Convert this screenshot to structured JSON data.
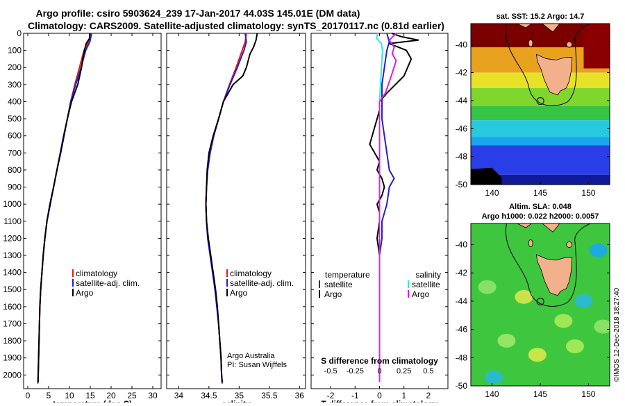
{
  "title": {
    "line1": "Argo profile: csiro 5903624_239 17-Jan-2017 44.03S 145.01E (DM data)",
    "line2": "Climatology: CARS2009. Satellite-adjusted climatology: synTS_20170117.nc (0.81d earlier)"
  },
  "depth_ticks": [
    "0",
    "100",
    "200",
    "300",
    "400",
    "500",
    "600",
    "700",
    "800",
    "900",
    "1000",
    "1100",
    "1200",
    "1300",
    "1400",
    "1500",
    "1600",
    "1700",
    "1800",
    "1900",
    "2000"
  ],
  "legends": {
    "profile": [
      "climatology",
      "satellite-adj. clim.",
      "Argo"
    ],
    "diff_temperature": [
      "temperature",
      "satellite",
      "Argo"
    ],
    "diff_salinity": [
      "salinity",
      "satellite",
      "Argo"
    ]
  },
  "credits": {
    "line1": "Argo Australia",
    "line2": "PI: Susan Wijffels"
  },
  "maps": {
    "sst_title": "sat. SST: 15.2 Argo: 14.7",
    "sla_title1": "Altim. SLA: 0.048",
    "sla_title2": "Argo h1000: 0.022 h2000: 0.0057",
    "lat_ticks": [
      "-40",
      "-42",
      "-44",
      "-46",
      "-48",
      "-50"
    ],
    "lon_ticks": [
      "140",
      "145",
      "150"
    ],
    "float_marker": {
      "lon": 145.01,
      "lat": -44.03
    }
  },
  "side_text": "©IMOS 12-Dec-2018 18:27:40",
  "colors": {
    "climatology": "#e31a1c",
    "satellite": "#1f1fd6",
    "argo": "#000000",
    "sat_salinity": "#35e6e6",
    "argo_salinity": "#e619e6"
  },
  "chart_data": [
    {
      "type": "line",
      "xlabel": "temperature (deg C)",
      "ylabel": "",
      "xlim": [
        -1,
        32
      ],
      "ylim": [
        2080,
        0
      ],
      "xticks": [
        "0",
        "5",
        "10",
        "15",
        "20",
        "25",
        "30"
      ],
      "series": [
        {
          "name": "climatology",
          "color": "#e31a1c",
          "points": [
            [
              15.1,
              0
            ],
            [
              14.6,
              50
            ],
            [
              13.5,
              100
            ],
            [
              12.4,
              200
            ],
            [
              11.3,
              300
            ],
            [
              10.3,
              400
            ],
            [
              9.5,
              500
            ],
            [
              8.6,
              600
            ],
            [
              7.8,
              700
            ],
            [
              7.0,
              800
            ],
            [
              6.2,
              900
            ],
            [
              5.3,
              1000
            ],
            [
              4.6,
              1100
            ],
            [
              4.1,
              1200
            ],
            [
              3.7,
              1300
            ],
            [
              3.4,
              1400
            ],
            [
              3.1,
              1500
            ],
            [
              2.9,
              1600
            ],
            [
              2.8,
              1700
            ],
            [
              2.7,
              1800
            ],
            [
              2.6,
              1900
            ],
            [
              2.5,
              2000
            ],
            [
              2.4,
              2050
            ]
          ]
        },
        {
          "name": "satellite-adj. clim.",
          "color": "#1f1fd6",
          "points": [
            [
              15.3,
              0
            ],
            [
              14.9,
              50
            ],
            [
              13.9,
              100
            ],
            [
              12.8,
              200
            ],
            [
              11.5,
              300
            ],
            [
              10.3,
              400
            ],
            [
              9.5,
              500
            ],
            [
              8.6,
              600
            ],
            [
              7.8,
              700
            ],
            [
              7.0,
              800
            ],
            [
              6.2,
              900
            ],
            [
              5.3,
              1000
            ],
            [
              4.6,
              1100
            ],
            [
              4.1,
              1200
            ],
            [
              3.7,
              1300
            ],
            [
              3.4,
              1400
            ],
            [
              3.1,
              1500
            ],
            [
              2.9,
              1600
            ],
            [
              2.8,
              1700
            ],
            [
              2.7,
              1800
            ],
            [
              2.6,
              1900
            ],
            [
              2.5,
              2000
            ],
            [
              2.4,
              2050
            ]
          ]
        },
        {
          "name": "Argo",
          "color": "#000000",
          "points": [
            [
              14.9,
              0
            ],
            [
              14.8,
              30
            ],
            [
              14.0,
              60
            ],
            [
              13.6,
              100
            ],
            [
              13.2,
              150
            ],
            [
              12.9,
              200
            ],
            [
              12.0,
              300
            ],
            [
              10.5,
              400
            ],
            [
              9.5,
              500
            ],
            [
              8.7,
              600
            ],
            [
              7.9,
              700
            ],
            [
              7.0,
              800
            ],
            [
              6.2,
              900
            ],
            [
              5.4,
              1000
            ],
            [
              4.6,
              1100
            ],
            [
              4.1,
              1200
            ],
            [
              3.7,
              1300
            ],
            [
              3.4,
              1400
            ],
            [
              3.1,
              1500
            ],
            [
              2.9,
              1600
            ],
            [
              2.8,
              1700
            ],
            [
              2.7,
              1800
            ],
            [
              2.6,
              1900
            ],
            [
              2.5,
              2000
            ],
            [
              2.5,
              2040
            ]
          ]
        }
      ]
    },
    {
      "type": "line",
      "xlabel": "salinity",
      "ylabel": "",
      "xlim": [
        33.8,
        36.1
      ],
      "ylim": [
        2080,
        0
      ],
      "xticks": [
        "34",
        "34.5",
        "35",
        "35.5",
        "36"
      ],
      "series": [
        {
          "name": "climatology",
          "color": "#e31a1c",
          "points": [
            [
              35.12,
              0
            ],
            [
              35.1,
              50
            ],
            [
              35.05,
              100
            ],
            [
              34.95,
              200
            ],
            [
              34.84,
              300
            ],
            [
              34.74,
              400
            ],
            [
              34.66,
              500
            ],
            [
              34.58,
              600
            ],
            [
              34.52,
              700
            ],
            [
              34.48,
              800
            ],
            [
              34.46,
              900
            ],
            [
              34.45,
              1000
            ],
            [
              34.46,
              1100
            ],
            [
              34.48,
              1200
            ],
            [
              34.52,
              1300
            ],
            [
              34.56,
              1400
            ],
            [
              34.6,
              1500
            ],
            [
              34.63,
              1600
            ],
            [
              34.66,
              1700
            ],
            [
              34.68,
              1800
            ],
            [
              34.7,
              1900
            ],
            [
              34.71,
              2000
            ],
            [
              34.72,
              2050
            ]
          ]
        },
        {
          "name": "satellite-adj. clim.",
          "color": "#1f1fd6",
          "points": [
            [
              35.1,
              0
            ],
            [
              35.12,
              50
            ],
            [
              35.08,
              100
            ],
            [
              34.97,
              200
            ],
            [
              34.85,
              300
            ],
            [
              34.74,
              400
            ],
            [
              34.66,
              500
            ],
            [
              34.58,
              600
            ],
            [
              34.52,
              700
            ],
            [
              34.48,
              800
            ],
            [
              34.46,
              900
            ],
            [
              34.45,
              1000
            ],
            [
              34.46,
              1100
            ],
            [
              34.48,
              1200
            ],
            [
              34.52,
              1300
            ],
            [
              34.56,
              1400
            ],
            [
              34.6,
              1500
            ],
            [
              34.63,
              1600
            ],
            [
              34.66,
              1700
            ],
            [
              34.68,
              1800
            ],
            [
              34.7,
              1900
            ],
            [
              34.71,
              2000
            ],
            [
              34.72,
              2050
            ]
          ]
        },
        {
          "name": "Argo",
          "color": "#000000",
          "points": [
            [
              35.3,
              0
            ],
            [
              35.28,
              40
            ],
            [
              35.24,
              80
            ],
            [
              35.18,
              120
            ],
            [
              35.12,
              200
            ],
            [
              35.06,
              250
            ],
            [
              34.9,
              300
            ],
            [
              34.74,
              400
            ],
            [
              34.66,
              500
            ],
            [
              34.57,
              600
            ],
            [
              34.5,
              700
            ],
            [
              34.47,
              800
            ],
            [
              34.46,
              900
            ],
            [
              34.45,
              1000
            ],
            [
              34.46,
              1100
            ],
            [
              34.49,
              1200
            ],
            [
              34.53,
              1300
            ],
            [
              34.57,
              1400
            ],
            [
              34.61,
              1500
            ],
            [
              34.64,
              1600
            ],
            [
              34.66,
              1700
            ],
            [
              34.68,
              1800
            ],
            [
              34.7,
              1900
            ],
            [
              34.71,
              2000
            ],
            [
              34.72,
              2040
            ]
          ]
        }
      ]
    },
    {
      "type": "line",
      "xlabel": "T difference from climatology",
      "ylabel": "",
      "xlim": [
        -2.8,
        2.8
      ],
      "ylim": [
        2080,
        0
      ],
      "xticks": [
        "-2",
        "-1",
        "0",
        "1",
        "2"
      ],
      "secondary_xlabel": "S difference from climatology",
      "secondary_xticks": [
        "-0.5",
        "-0.25",
        "0",
        "0.25",
        "0.5"
      ],
      "secondary_xlim": [
        -0.7,
        0.7
      ],
      "series": [
        {
          "name": "satellite (temperature)",
          "color": "#1f1fd6",
          "points": [
            [
              0.3,
              0
            ],
            [
              0.4,
              50
            ],
            [
              0.3,
              100
            ],
            [
              0.2,
              200
            ],
            [
              0.1,
              300
            ],
            [
              0.1,
              400
            ],
            [
              0.1,
              500
            ],
            [
              0.2,
              600
            ],
            [
              0.3,
              700
            ],
            [
              0.4,
              800
            ],
            [
              0.6,
              850
            ],
            [
              0.4,
              900
            ],
            [
              0.3,
              1000
            ],
            [
              0.1,
              1100
            ],
            [
              0.1,
              1200
            ],
            [
              0.0,
              1300
            ],
            [
              0.0,
              1400
            ],
            [
              0.0,
              1500
            ],
            [
              0.0,
              1600
            ],
            [
              0.0,
              1700
            ],
            [
              0.0,
              1800
            ],
            [
              0.0,
              1900
            ],
            [
              0.0,
              2000
            ],
            [
              0.0,
              2040
            ]
          ]
        },
        {
          "name": "Argo (temperature)",
          "color": "#000000",
          "points": [
            [
              0.5,
              0
            ],
            [
              0.9,
              20
            ],
            [
              1.6,
              40
            ],
            [
              0.4,
              60
            ],
            [
              1.1,
              100
            ],
            [
              1.3,
              150
            ],
            [
              1.0,
              250
            ],
            [
              0.3,
              350
            ],
            [
              0.0,
              400
            ],
            [
              0.0,
              450
            ],
            [
              -0.2,
              550
            ],
            [
              -0.4,
              650
            ],
            [
              -0.2,
              700
            ],
            [
              0.0,
              750
            ],
            [
              -0.1,
              800
            ],
            [
              0.1,
              850
            ],
            [
              0.2,
              900
            ],
            [
              0.1,
              950
            ],
            [
              -0.1,
              1000
            ],
            [
              0.0,
              1050
            ],
            [
              0.0,
              1100
            ],
            [
              -0.1,
              1200
            ],
            [
              0.0,
              1300
            ],
            [
              0.0,
              1400
            ],
            [
              0.0,
              1500
            ],
            [
              0.0,
              1600
            ],
            [
              0.0,
              1700
            ],
            [
              0.0,
              1800
            ],
            [
              0.0,
              1900
            ],
            [
              0.0,
              2000
            ],
            [
              0.0,
              2040
            ]
          ]
        },
        {
          "name": "satellite (salinity)",
          "color": "#35e6e6",
          "points": [
            [
              -0.02,
              0
            ],
            [
              -0.03,
              30
            ],
            [
              0.02,
              60
            ],
            [
              0.03,
              100
            ],
            [
              0.02,
              200
            ],
            [
              0.01,
              300
            ],
            [
              0.0,
              400
            ],
            [
              0.0,
              500
            ],
            [
              0.0,
              700
            ],
            [
              0.0,
              1000
            ],
            [
              0.0,
              1500
            ],
            [
              0.0,
              2040
            ]
          ]
        },
        {
          "name": "Argo (salinity)",
          "color": "#e619e6",
          "points": [
            [
              0.17,
              0
            ],
            [
              0.1,
              40
            ],
            [
              0.15,
              80
            ],
            [
              0.13,
              120
            ],
            [
              0.17,
              160
            ],
            [
              0.12,
              250
            ],
            [
              0.06,
              350
            ],
            [
              0.0,
              400
            ],
            [
              0.0,
              500
            ],
            [
              0.0,
              700
            ],
            [
              0.0,
              1000
            ],
            [
              0.0,
              1500
            ],
            [
              0.0,
              2040
            ]
          ]
        }
      ]
    }
  ]
}
